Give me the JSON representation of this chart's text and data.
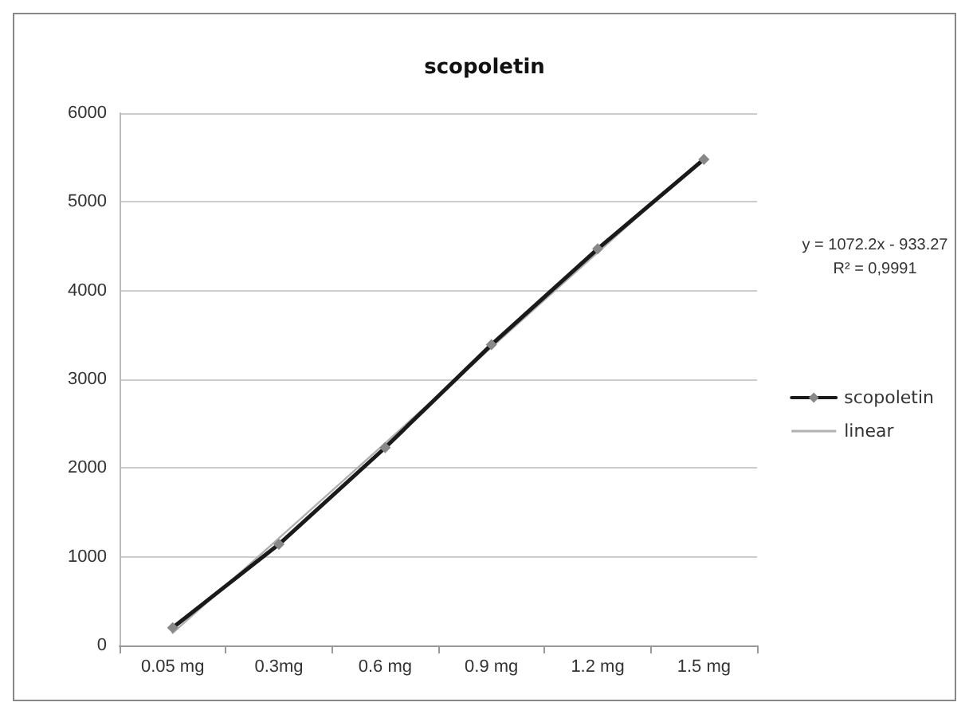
{
  "chart_data": {
    "type": "line",
    "title": "scopoletin",
    "categories": [
      "0.05 mg",
      "0.3mg",
      "0.6 mg",
      "0.9 mg",
      "1.2 mg",
      "1.5 mg"
    ],
    "series": [
      {
        "name": "scopoletin",
        "color": "#1a1a1a",
        "values": [
          200,
          1140,
          2230,
          3390,
          4470,
          5480
        ],
        "marker": "diamond"
      },
      {
        "name": "linear",
        "color": "#b0b0b0",
        "values": [
          140,
          1210,
          2280,
          3360,
          4430,
          5500
        ],
        "marker": "none"
      }
    ],
    "ylim": [
      0,
      6000
    ],
    "yticks": [
      0,
      1000,
      2000,
      3000,
      4000,
      5000,
      6000
    ],
    "grid": "y",
    "legend": "right",
    "annotations": [
      "y = 1072.2x - 933.27",
      "R² = 0,9991"
    ]
  }
}
